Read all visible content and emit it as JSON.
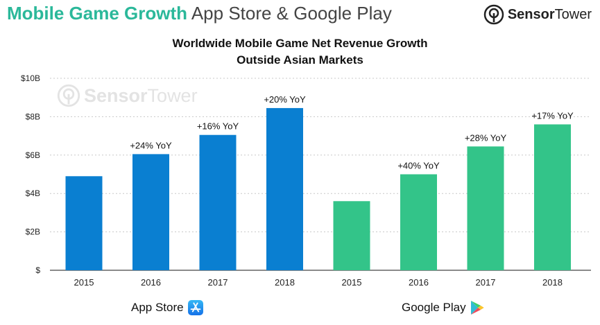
{
  "header": {
    "title_bold": "Mobile Game Growth",
    "title_light": "App Store & Google Play"
  },
  "brand": {
    "name_bold": "Sensor",
    "name_light": "Tower"
  },
  "watermark": {
    "name_bold": "Sensor",
    "name_light": "Tower"
  },
  "chart_data": {
    "type": "bar",
    "title_line1": "Worldwide Mobile Game Net Revenue Growth",
    "title_line2": "Outside Asian Markets",
    "ylim": [
      0,
      10
    ],
    "yticks": [
      {
        "value": 0,
        "label": "$"
      },
      {
        "value": 2,
        "label": "$2B"
      },
      {
        "value": 4,
        "label": "$4B"
      },
      {
        "value": 6,
        "label": "$6B"
      },
      {
        "value": 8,
        "label": "$8B"
      },
      {
        "value": 10,
        "label": "$10B"
      }
    ],
    "grid": true,
    "series": [
      {
        "name": "App Store",
        "color": "#0a7fd1",
        "categories": [
          "2015",
          "2016",
          "2017",
          "2018"
        ],
        "values": [
          4.9,
          6.05,
          7.05,
          8.45
        ],
        "annotations": [
          "",
          "+24% YoY",
          "+16% YoY",
          "+20% YoY"
        ]
      },
      {
        "name": "Google Play",
        "color": "#33c489",
        "categories": [
          "2015",
          "2016",
          "2017",
          "2018"
        ],
        "values": [
          3.6,
          5.0,
          6.45,
          7.6
        ],
        "annotations": [
          "",
          "+40% YoY",
          "+28% YoY",
          "+17% YoY"
        ]
      }
    ]
  },
  "legend": {
    "app_store": "App Store",
    "google_play": "Google Play"
  },
  "icons": {
    "app_store": "app-store-icon",
    "google_play": "google-play-icon",
    "brand": "sensortower-logo-icon"
  }
}
